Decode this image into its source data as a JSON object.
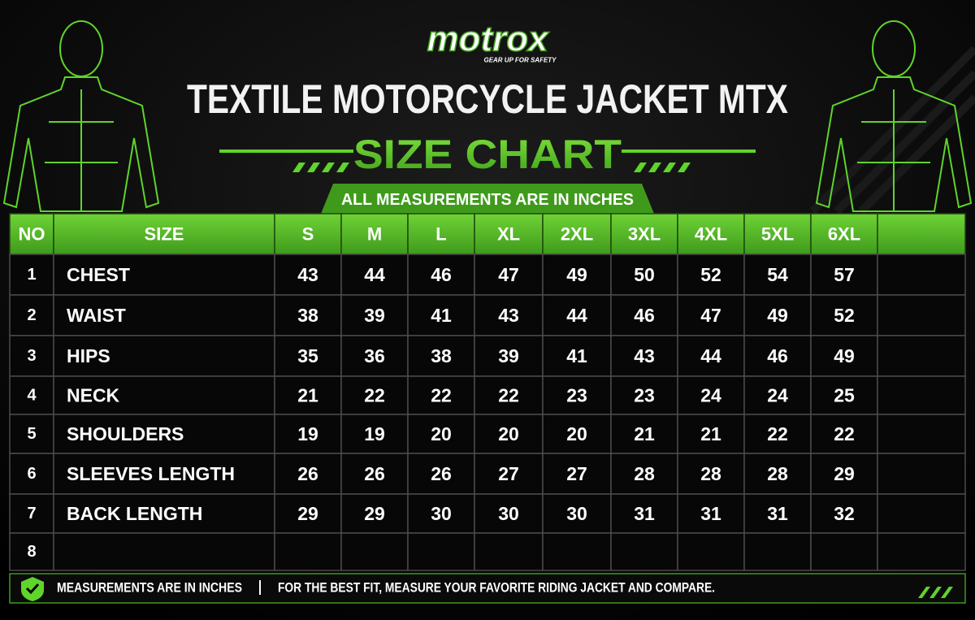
{
  "header": {
    "logo": "motrox",
    "tagline": "GEAR UP FOR SAFETY",
    "title": "TEXTILE MOTORCYCLE JACKET MTX",
    "subtitle": "SIZE CHART",
    "note": "ALL MEASUREMENTS ARE IN INCHES"
  },
  "table": {
    "columns": [
      "NO",
      "SIZE",
      "S",
      "M",
      "L",
      "XL",
      "2XL",
      "3XL",
      "4XL",
      "5XL",
      "6XL"
    ],
    "rows": [
      {
        "no": 1,
        "label": "CHEST",
        "values": [
          43,
          44,
          46,
          47,
          49,
          50,
          52,
          54,
          57
        ]
      },
      {
        "no": 2,
        "label": "WAIST",
        "values": [
          38,
          39,
          41,
          43,
          44,
          46,
          47,
          49,
          52
        ]
      },
      {
        "no": 3,
        "label": "HIPS",
        "values": [
          35,
          36,
          38,
          39,
          41,
          43,
          44,
          46,
          49
        ]
      },
      {
        "no": 4,
        "label": "NECK",
        "values": [
          21,
          22,
          22,
          22,
          23,
          23,
          24,
          24,
          25
        ]
      },
      {
        "no": 5,
        "label": "SHOULDERS",
        "values": [
          19,
          19,
          20,
          20,
          20,
          21,
          21,
          22,
          22
        ]
      },
      {
        "no": 6,
        "label": "SLEEVES LENGTH",
        "values": [
          26,
          26,
          26,
          27,
          27,
          28,
          28,
          28,
          29
        ]
      },
      {
        "no": 7,
        "label": "BACK LENGTH",
        "values": [
          29,
          29,
          30,
          30,
          30,
          31,
          31,
          31,
          32
        ]
      },
      {
        "no": 8
      }
    ]
  },
  "footer": {
    "left": "MEASUREMENTS ARE IN INCHES",
    "right": "FOR THE BEST FIT, MEASURE YOUR FAVORITE RIDING JACKET AND COMPARE."
  }
}
